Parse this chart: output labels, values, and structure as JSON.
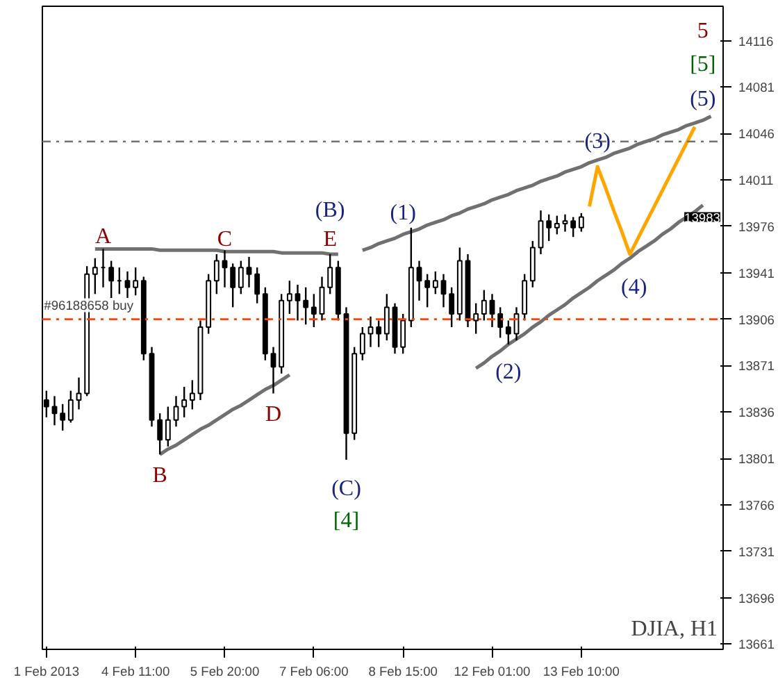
{
  "chart_data": {
    "type": "candlestick",
    "categories": [
      "1 Feb 2013",
      null,
      null,
      null,
      null,
      null,
      null,
      null,
      null,
      null,
      null,
      "4 Feb 11:00",
      null,
      null,
      null,
      null,
      null,
      null,
      null,
      null,
      null,
      null,
      "5 Feb 20:00",
      null,
      null,
      null,
      null,
      null,
      null,
      null,
      null,
      null,
      null,
      "7 Feb 06:00",
      null,
      null,
      null,
      null,
      null,
      null,
      null,
      null,
      null,
      null,
      "8 Feb 15:00",
      null,
      null,
      null,
      null,
      null,
      null,
      null,
      null,
      null,
      null,
      "12 Feb 01:00",
      null,
      null,
      null,
      null,
      null,
      null,
      null,
      null,
      null,
      null,
      "13 Feb 10:00",
      null,
      null,
      null,
      null,
      null,
      null,
      null,
      null,
      null,
      null,
      null,
      null,
      null,
      null,
      null,
      null,
      null
    ],
    "ohlc": [
      [
        13845,
        13852,
        13832,
        13840
      ],
      [
        13840,
        13848,
        13826,
        13835
      ],
      [
        13835,
        13842,
        13822,
        13830
      ],
      [
        13830,
        13852,
        13828,
        13845
      ],
      [
        13845,
        13862,
        13838,
        13850
      ],
      [
        13850,
        13946,
        13848,
        13940
      ],
      [
        13940,
        13952,
        13925,
        13945
      ],
      [
        13945,
        13959,
        13930,
        13945
      ],
      [
        13945,
        13950,
        13922,
        13935
      ],
      [
        13935,
        13945,
        13925,
        13935
      ],
      [
        13935,
        13942,
        13922,
        13930
      ],
      [
        13930,
        13945,
        13924,
        13935
      ],
      [
        13935,
        13938,
        13875,
        13880
      ],
      [
        13880,
        13885,
        13825,
        13830
      ],
      [
        13830,
        13835,
        13804,
        13815
      ],
      [
        13815,
        13840,
        13810,
        13830
      ],
      [
        13830,
        13848,
        13825,
        13840
      ],
      [
        13840,
        13855,
        13832,
        13845
      ],
      [
        13845,
        13860,
        13838,
        13850
      ],
      [
        13850,
        13905,
        13845,
        13900
      ],
      [
        13900,
        13940,
        13895,
        13935
      ],
      [
        13935,
        13955,
        13925,
        13950
      ],
      [
        13950,
        13958,
        13930,
        13945
      ],
      [
        13945,
        13948,
        13915,
        13930
      ],
      [
        13930,
        13950,
        13925,
        13945
      ],
      [
        13945,
        13953,
        13930,
        13940
      ],
      [
        13940,
        13945,
        13918,
        13925
      ],
      [
        13925,
        13930,
        13875,
        13880
      ],
      [
        13880,
        13885,
        13850,
        13870
      ],
      [
        13870,
        13925,
        13865,
        13920
      ],
      [
        13920,
        13935,
        13910,
        13925
      ],
      [
        13925,
        13932,
        13905,
        13920
      ],
      [
        13920,
        13930,
        13902,
        13915
      ],
      [
        13915,
        13925,
        13900,
        13910
      ],
      [
        13910,
        13938,
        13905,
        13930
      ],
      [
        13930,
        13955,
        13925,
        13945
      ],
      [
        13945,
        13950,
        13905,
        13910
      ],
      [
        13910,
        13915,
        13800,
        13820
      ],
      [
        13820,
        13885,
        13815,
        13880
      ],
      [
        13880,
        13900,
        13875,
        13895
      ],
      [
        13895,
        13908,
        13885,
        13900
      ],
      [
        13900,
        13905,
        13885,
        13895
      ],
      [
        13895,
        13925,
        13890,
        13915
      ],
      [
        13915,
        13918,
        13880,
        13885
      ],
      [
        13885,
        13910,
        13880,
        13905
      ],
      [
        13905,
        13975,
        13900,
        13945
      ],
      [
        13945,
        13950,
        13920,
        13935
      ],
      [
        13935,
        13940,
        13915,
        13930
      ],
      [
        13930,
        13942,
        13925,
        13935
      ],
      [
        13935,
        13940,
        13915,
        13925
      ],
      [
        13925,
        13930,
        13900,
        13910
      ],
      [
        13910,
        13960,
        13905,
        13950
      ],
      [
        13950,
        13955,
        13900,
        13905
      ],
      [
        13905,
        13918,
        13895,
        13910
      ],
      [
        13910,
        13928,
        13905,
        13920
      ],
      [
        13920,
        13925,
        13900,
        13910
      ],
      [
        13910,
        13915,
        13892,
        13900
      ],
      [
        13900,
        13905,
        13887,
        13895
      ],
      [
        13895,
        13915,
        13890,
        13910
      ],
      [
        13910,
        13940,
        13905,
        13935
      ],
      [
        13935,
        13965,
        13930,
        13960
      ],
      [
        13960,
        13988,
        13955,
        13980
      ],
      [
        13980,
        13985,
        13965,
        13975
      ],
      [
        13975,
        13984,
        13970,
        13978
      ],
      [
        13978,
        13985,
        13972,
        13980
      ],
      [
        13980,
        13983,
        13968,
        13975
      ],
      [
        13975,
        13986,
        13972,
        13983
      ],
      null,
      null,
      null,
      null,
      null,
      null,
      null,
      null,
      null,
      null,
      null,
      null,
      null,
      null,
      null,
      null,
      null
    ],
    "color": "#000000",
    "series": [
      {
        "type": "line",
        "color": "#707070",
        "values": [
          null,
          null,
          null,
          null,
          null,
          null,
          13959,
          13959,
          13959,
          13959,
          13959,
          13959,
          13959,
          13959,
          13958,
          13958,
          13958,
          13958,
          13958,
          13958,
          13958,
          13958,
          13957,
          13957,
          13957,
          13957,
          13957,
          13957,
          13957,
          13956,
          13956,
          13956,
          13956,
          13956,
          13956,
          13955,
          13955,
          null,
          null,
          null,
          null,
          null,
          null,
          null,
          null,
          null,
          null,
          null,
          null,
          null,
          null,
          null,
          null,
          null,
          null,
          null,
          null,
          null,
          null,
          null,
          null,
          null,
          null,
          null,
          null,
          null,
          null,
          null,
          null,
          null,
          null,
          null,
          null,
          null,
          null,
          null,
          null,
          null,
          null,
          null,
          null,
          null,
          null,
          null
        ]
      },
      {
        "type": "line",
        "color": "#707070",
        "values": [
          null,
          null,
          null,
          null,
          null,
          null,
          null,
          null,
          null,
          null,
          null,
          null,
          null,
          null,
          13804,
          13808,
          13811,
          13815,
          13819,
          13823,
          13826,
          13830,
          13834,
          13838,
          13841,
          13845,
          13849,
          13853,
          13856,
          13860,
          13864,
          null,
          null,
          null,
          null,
          null,
          null,
          null,
          null,
          null,
          null,
          null,
          null,
          null,
          null,
          null,
          null,
          null,
          null,
          null,
          null,
          null,
          null,
          null,
          null,
          null,
          null,
          null,
          null,
          null,
          null,
          null,
          null,
          null,
          null,
          null,
          null,
          null,
          null,
          null,
          null,
          null,
          null,
          null,
          null,
          null,
          null,
          null,
          null,
          null,
          null,
          null,
          null,
          null
        ]
      },
      {
        "type": "line",
        "color": "#707070",
        "values": [
          null,
          null,
          null,
          null,
          null,
          null,
          null,
          null,
          null,
          null,
          null,
          null,
          null,
          null,
          null,
          null,
          null,
          null,
          null,
          null,
          null,
          null,
          null,
          null,
          null,
          null,
          null,
          null,
          null,
          null,
          null,
          null,
          null,
          null,
          null,
          null,
          null,
          null,
          null,
          13958,
          13960,
          13963,
          13965,
          13967,
          13970,
          13972,
          13974,
          13977,
          13979,
          13981,
          13984,
          13986,
          13989,
          13991,
          13993,
          13996,
          13998,
          14000,
          14003,
          14005,
          14007,
          14010,
          14012,
          14014,
          14017,
          14019,
          14021,
          14024,
          14026,
          14028,
          14031,
          14033,
          14035,
          14038,
          14040,
          14042,
          14045,
          14047,
          14049,
          14052,
          14054,
          14056,
          14059,
          null
        ]
      },
      {
        "type": "line",
        "color": "#707070",
        "values": [
          null,
          null,
          null,
          null,
          null,
          null,
          null,
          null,
          null,
          null,
          null,
          null,
          null,
          null,
          null,
          null,
          null,
          null,
          null,
          null,
          null,
          null,
          null,
          null,
          null,
          null,
          null,
          null,
          null,
          null,
          null,
          null,
          null,
          null,
          null,
          null,
          null,
          null,
          null,
          null,
          null,
          null,
          null,
          null,
          null,
          null,
          null,
          null,
          null,
          null,
          null,
          null,
          null,
          13869,
          13873,
          13878,
          13882,
          13887,
          13891,
          13895,
          13900,
          13904,
          13909,
          13913,
          13917,
          13922,
          13926,
          13930,
          13935,
          13939,
          13943,
          13948,
          13952,
          13957,
          13961,
          13965,
          13970,
          13974,
          13979,
          13983,
          13987,
          13992,
          null,
          null
        ]
      },
      {
        "type": "line",
        "color": "#ffa500",
        "values": [
          null,
          null,
          null,
          null,
          null,
          null,
          null,
          null,
          null,
          null,
          null,
          null,
          null,
          null,
          null,
          null,
          null,
          null,
          null,
          null,
          null,
          null,
          null,
          null,
          null,
          null,
          null,
          null,
          null,
          null,
          null,
          null,
          null,
          null,
          null,
          null,
          null,
          null,
          null,
          null,
          null,
          null,
          null,
          null,
          null,
          null,
          null,
          null,
          null,
          null,
          null,
          null,
          null,
          null,
          null,
          null,
          null,
          null,
          null,
          null,
          null,
          null,
          null,
          null,
          null,
          null,
          null,
          13991,
          14021,
          14005,
          13988,
          13972,
          13955,
          13967,
          13979,
          13991,
          14003,
          14015,
          14027,
          14039,
          14051,
          null,
          null,
          null
        ]
      }
    ],
    "ylim": [
      13657,
      14142
    ],
    "yticks": [
      13661,
      13696,
      13731,
      13766,
      13801,
      13836,
      13871,
      13906,
      13941,
      13976,
      14011,
      14046,
      14081,
      14116
    ],
    "ref_lines": [
      {
        "axis": "y",
        "value": 13906,
        "label": "#96188658 buy",
        "color": "#ff4500",
        "line_style": "dashdot"
      },
      {
        "axis": "y",
        "value": 14040,
        "color": "#707070",
        "line_style": "dashdot"
      }
    ],
    "annotations": [
      "A",
      "B",
      "C",
      "D",
      "E",
      "(B)",
      "(C)",
      "[4]",
      "(1)",
      "(2)",
      "(3)",
      "(4)",
      "(5)",
      "[5]",
      "5",
      "13983",
      "DJIA, H1"
    ],
    "grid": false
  }
}
